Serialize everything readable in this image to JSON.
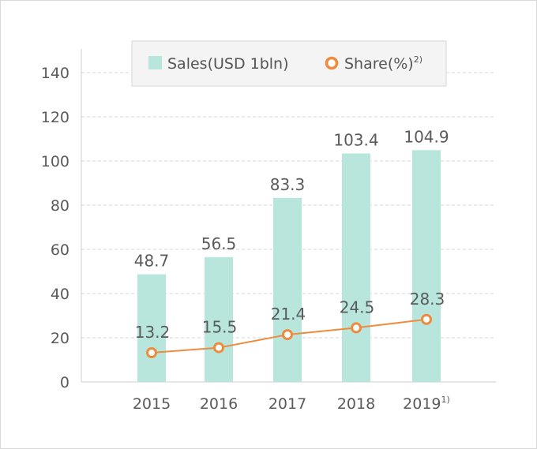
{
  "chart_data": {
    "type": "bar",
    "categories": [
      "2015",
      "2016",
      "2017",
      "2018",
      "2019"
    ],
    "category_notes": [
      "",
      "",
      "",
      "",
      "1)"
    ],
    "series": [
      {
        "name": "Sales(USD 1bln)",
        "type": "bar",
        "values": [
          48.7,
          56.5,
          83.3,
          103.4,
          104.9
        ],
        "color": "#b8e6dc"
      },
      {
        "name": "Share(%)",
        "name_note": "2)",
        "type": "line",
        "values": [
          13.2,
          15.5,
          21.4,
          24.5,
          28.3
        ],
        "color": "#f08a3c"
      }
    ],
    "yticks": [
      0,
      20,
      40,
      60,
      80,
      100,
      120,
      140
    ],
    "ylim": [
      0,
      140
    ],
    "grid": true,
    "legend": "top-center",
    "title": "",
    "xlabel": "",
    "ylabel": ""
  }
}
